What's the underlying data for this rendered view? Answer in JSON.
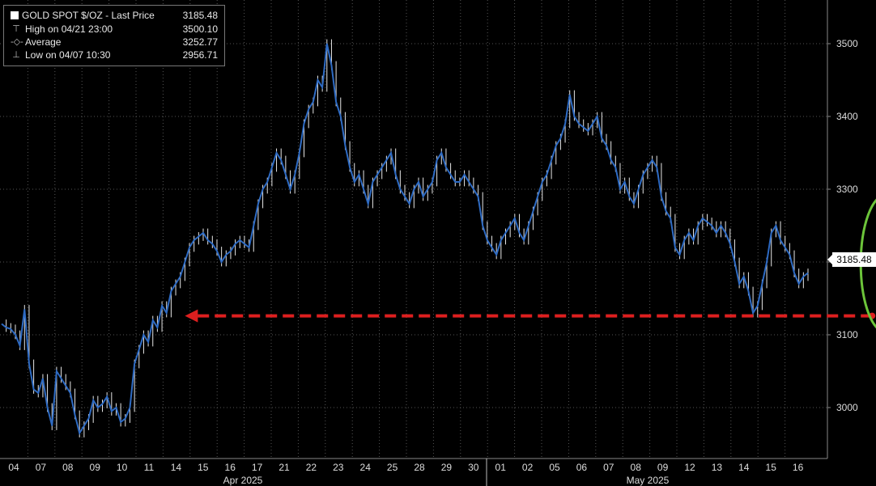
{
  "legend": {
    "title": "GOLD SPOT $/OZ - Last Price",
    "last_price": "3185.48",
    "rows": [
      {
        "label": "High on 04/21 23:00",
        "value": "3500.10",
        "icon": "high-marker-icon"
      },
      {
        "label": "Average",
        "value": "3252.77",
        "icon": "average-marker-icon"
      },
      {
        "label": "Low on 04/07 10:30",
        "value": "2956.71",
        "icon": "low-marker-icon"
      }
    ]
  },
  "price_tag": "3185.48",
  "colors": {
    "background": "#000000",
    "line": "#2e6bc4",
    "candle": "#e6e6e6",
    "grid": "#555555",
    "arrow": "#dd1f1f",
    "ellipse": "#6cc43a"
  },
  "chart_data": {
    "type": "line",
    "title": "GOLD SPOT $/OZ",
    "ylabel": "",
    "xlabel": "",
    "ylim": [
      2930,
      3560
    ],
    "yticks": [
      3000,
      3100,
      3200,
      3300,
      3400,
      3500
    ],
    "grid": true,
    "x_day_labels": [
      "04",
      "07",
      "08",
      "09",
      "10",
      "11",
      "14",
      "15",
      "16",
      "17",
      "21",
      "22",
      "23",
      "24",
      "25",
      "28",
      "29",
      "30",
      "01",
      "02",
      "05",
      "06",
      "07",
      "08",
      "09",
      "12",
      "13",
      "14",
      "15",
      "16"
    ],
    "month_labels": [
      "Apr 2025",
      "May 2025"
    ],
    "series": [
      {
        "values": [
          3115,
          3110,
          3108,
          3100,
          3085,
          3135,
          3060,
          3025,
          3020,
          3040,
          3000,
          2975,
          3050,
          3040,
          3030,
          3020,
          2990,
          2965,
          2975,
          2985,
          3010,
          3000,
          3005,
          3015,
          2995,
          3000,
          2980,
          2985,
          3000,
          3060,
          3080,
          3100,
          3090,
          3120,
          3110,
          3140,
          3130,
          3160,
          3170,
          3180,
          3200,
          3220,
          3230,
          3235,
          3240,
          3230,
          3225,
          3215,
          3200,
          3210,
          3215,
          3225,
          3230,
          3225,
          3220,
          3250,
          3280,
          3300,
          3310,
          3330,
          3350,
          3340,
          3320,
          3300,
          3320,
          3350,
          3390,
          3410,
          3420,
          3450,
          3440,
          3500,
          3470,
          3420,
          3400,
          3360,
          3330,
          3310,
          3320,
          3300,
          3280,
          3310,
          3320,
          3330,
          3340,
          3350,
          3320,
          3300,
          3290,
          3280,
          3300,
          3310,
          3290,
          3300,
          3310,
          3340,
          3350,
          3330,
          3320,
          3310,
          3310,
          3320,
          3310,
          3300,
          3290,
          3250,
          3230,
          3220,
          3210,
          3230,
          3240,
          3250,
          3260,
          3240,
          3230,
          3250,
          3270,
          3290,
          3310,
          3320,
          3340,
          3360,
          3370,
          3390,
          3430,
          3400,
          3390,
          3385,
          3380,
          3390,
          3400,
          3370,
          3360,
          3340,
          3330,
          3300,
          3310,
          3290,
          3280,
          3300,
          3320,
          3330,
          3340,
          3330,
          3290,
          3270,
          3260,
          3220,
          3210,
          3230,
          3240,
          3230,
          3250,
          3260,
          3255,
          3250,
          3240,
          3250,
          3240,
          3225,
          3200,
          3170,
          3180,
          3160,
          3130,
          3140,
          3170,
          3200,
          3240,
          3250,
          3230,
          3220,
          3210,
          3185,
          3170,
          3180,
          3185
        ]
      }
    ],
    "annotations": [
      {
        "type": "dashed-arrow",
        "from_index": 190,
        "to_index": 40,
        "value": 3126
      },
      {
        "type": "ellipse",
        "around_index_range": [
          186,
          200
        ]
      }
    ]
  }
}
